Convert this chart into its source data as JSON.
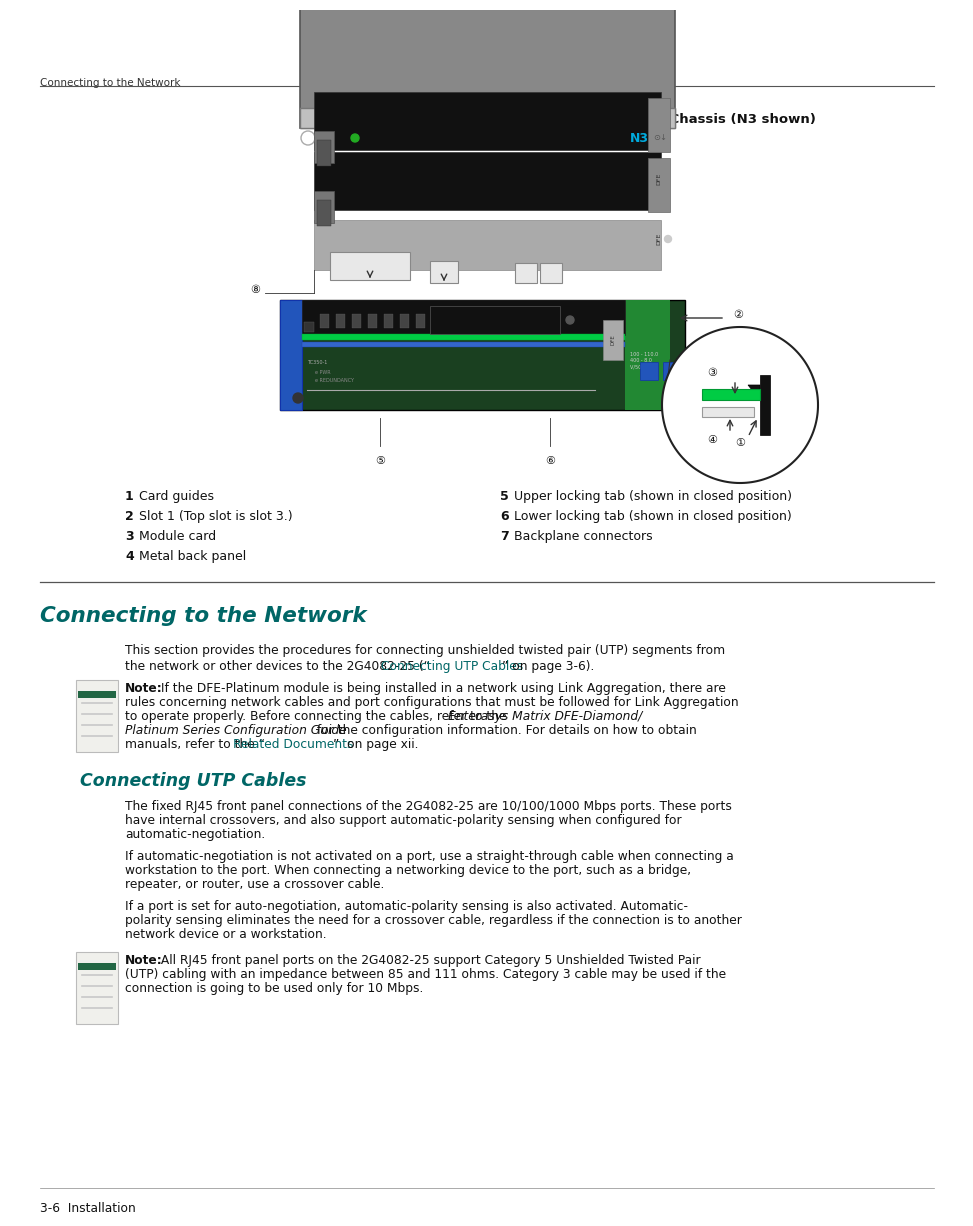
{
  "page_header": "Connecting to the Network",
  "figure_title": "Figure 3-2    Installing Module into N3, N1, or N5 Chassis (N3 shown)",
  "section_title_1": "Connecting to the Network",
  "section_body_1": "This section provides the procedures for connecting unshielded twisted pair (UTP) segments from\nthe network or other devices to the 2G4082-25 (“Connecting UTP Cables” on page 3-6).",
  "note_label_1": "Note:",
  "note_text_1": " If the DFE-Platinum module is being installed in a network using Link Aggregation, there are\nrules concerning network cables and port configurations that must be followed for Link Aggregation\nto operate properly. Before connecting the cables, refer to the Enterasys Matrix DFE-Diamond/\nPlatinum Series Configuration Guide for the configuration information. For details on how to obtain\nmanuals, refer to the “Related Documents”  on page xii.",
  "section_title_2": "Connecting UTP Cables",
  "section_body_2": "The fixed RJ45 front panel connections of the 2G4082-25 are 10/100/1000 Mbps ports. These ports\nhave internal crossovers, and also support automatic-polarity sensing when configured for\nautomatic-negotiation.",
  "section_body_3": "If automatic-negotiation is not activated on a port, use a straight-through cable when connecting a\nworkstation to the port. When connecting a networking device to the port, such as a bridge,\nrepeater, or router, use a crossover cable.",
  "section_body_4": "If a port is set for auto-negotiation, automatic-polarity sensing is also activated. Automatic-\npolarity sensing eliminates the need for a crossover cable, regardless if the connection is to another\nnetwork device or a workstation.",
  "note_label_2": "Note:",
  "note_text_2": " All RJ45 front panel ports on the 2G4082-25 support Category 5 Unshielded Twisted Pair\n(UTP) cabling with an impedance between 85 and 111 ohms. Category 3 cable may be used if the\nconnection is going to be used only for 10 Mbps.",
  "legend_left": [
    [
      "1",
      "Card guides"
    ],
    [
      "2",
      "Slot 1 (Top slot is slot 3.)"
    ],
    [
      "3",
      "Module card"
    ],
    [
      "4",
      "Metal back panel"
    ]
  ],
  "legend_right": [
    [
      "5",
      "Upper locking tab (shown in closed position)"
    ],
    [
      "6",
      "Lower locking tab (shown in closed position)"
    ],
    [
      "7",
      "Backplane connectors"
    ]
  ],
  "page_footer": "3-6  Installation",
  "teal_color": "#006666",
  "bg": "#ffffff"
}
